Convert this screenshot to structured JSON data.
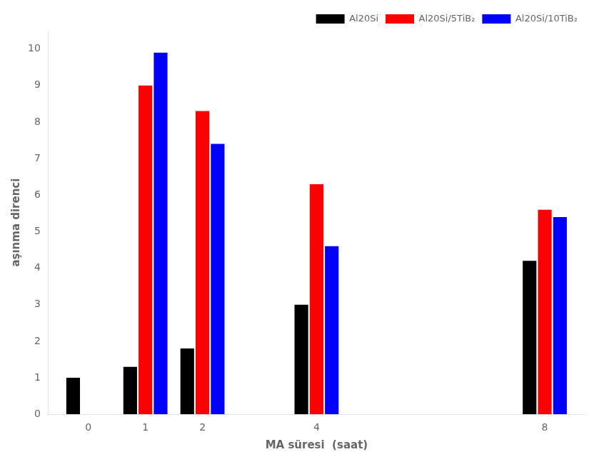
{
  "chart_data": {
    "type": "bar",
    "x": [
      0,
      1,
      2,
      4,
      8
    ],
    "series": [
      {
        "name": "Al20Si",
        "color": "#000000",
        "values": [
          1.0,
          1.3,
          1.8,
          3.0,
          4.2
        ]
      },
      {
        "name": "Al20Si/5TiB₂",
        "color": "#ff0000",
        "values": [
          null,
          9.0,
          8.3,
          6.3,
          5.6
        ]
      },
      {
        "name": "Al20Si/10TiB₂",
        "color": "#0000ff",
        "values": [
          null,
          9.9,
          7.4,
          4.6,
          5.4
        ]
      }
    ],
    "xlabel": "MA süresi  (saat)",
    "ylabel": "aşınma direnci",
    "xlim": [
      -0.7,
      8.7
    ],
    "xticks": [
      0,
      1,
      2,
      4,
      8
    ],
    "ylim": [
      0,
      10.5
    ],
    "yticks": [
      0,
      1,
      2,
      3,
      4,
      5,
      6,
      7,
      8,
      9,
      10
    ],
    "grid": false,
    "legend": "upper right"
  }
}
